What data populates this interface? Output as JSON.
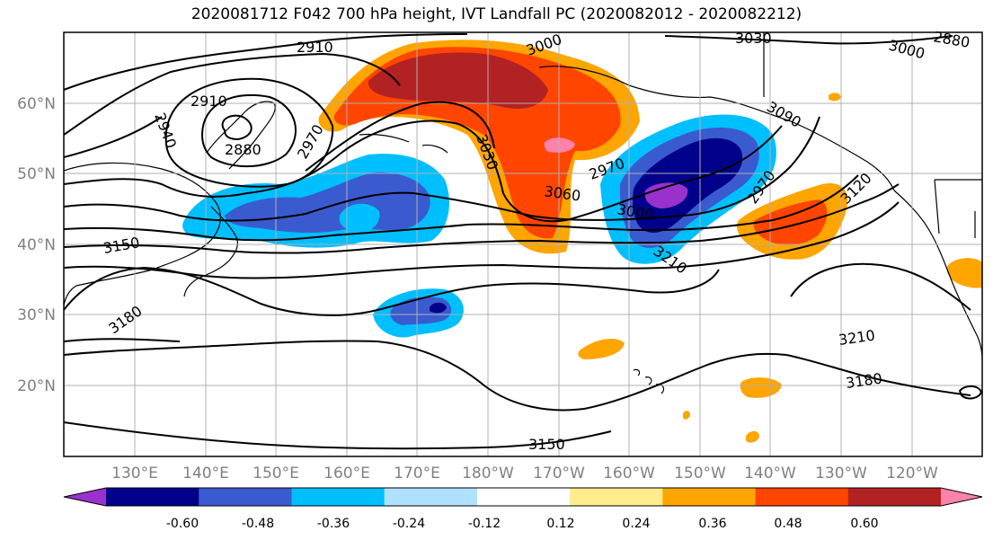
{
  "title": "2020081712 F042 700 hPa height, IVT Landfall PC (2020082012 - 2020082212)",
  "lat_labels": [
    "60°N",
    "50°N",
    "40°N",
    "30°N",
    "20°N"
  ],
  "lon_labels": [
    "130°E",
    "140°E",
    "150°E",
    "160°E",
    "170°E",
    "180°W",
    "170°W",
    "160°W",
    "150°W",
    "140°W",
    "130°W",
    "120°W"
  ],
  "contour_labels": [
    "2880",
    "2910",
    "2910",
    "2940",
    "2970",
    "2970",
    "2970",
    "3000",
    "3000",
    "3000",
    "3030",
    "3030",
    "3060",
    "3090",
    "3120",
    "3150",
    "3150",
    "3180",
    "3180",
    "3210",
    "3210",
    "2880"
  ],
  "colorbar": {
    "ticks": [
      "-0.60",
      "-0.48",
      "-0.36",
      "-0.24",
      "-0.12",
      "0.12",
      "0.24",
      "0.36",
      "0.48",
      "0.60"
    ],
    "colors": [
      "#9932cc",
      "#00008b",
      "#3a5bcf",
      "#00bfff",
      "#b0e2ff",
      "#ffffff",
      "#ffec8b",
      "#ffa500",
      "#ff4500",
      "#b22222",
      "#ff82ab"
    ]
  },
  "shading_colors": {
    "purple": "#9932cc",
    "navy": "#00008b",
    "blue": "#3a5bcf",
    "sky": "#00bfff",
    "light_sky": "#b0e2ff",
    "light_yellow": "#ffec8b",
    "orange": "#ffa500",
    "red_orange": "#ff4500",
    "dark_red": "#b22222",
    "pink": "#ff82ab"
  }
}
